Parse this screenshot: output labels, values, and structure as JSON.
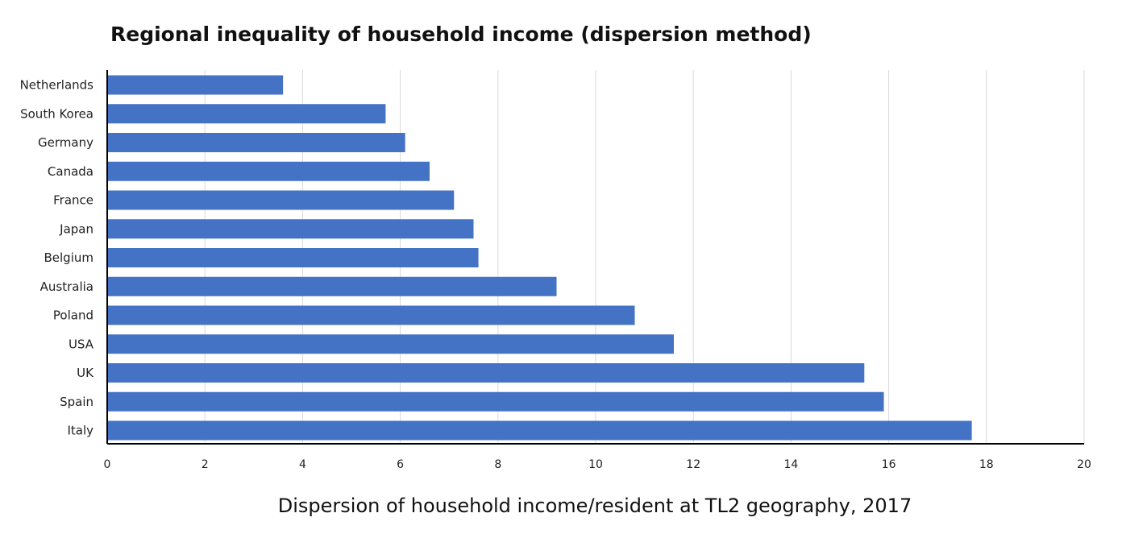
{
  "chart_data": {
    "type": "bar",
    "orientation": "horizontal",
    "title": "Regional inequality of household income (dispersion method)",
    "xlabel": "Dispersion of household income/resident at TL2 geography, 2017",
    "ylabel": "",
    "categories": [
      "Netherlands",
      "South Korea",
      "Germany",
      "Canada",
      "France",
      "Japan",
      "Belgium",
      "Australia",
      "Poland",
      "USA",
      "UK",
      "Spain",
      "Italy"
    ],
    "values": [
      3.6,
      5.7,
      6.1,
      6.6,
      7.1,
      7.5,
      7.6,
      9.2,
      10.8,
      11.6,
      15.5,
      15.9,
      17.7
    ],
    "xlim": [
      0,
      20
    ],
    "xticks": [
      "0",
      "2",
      "4",
      "6",
      "8",
      "10",
      "12",
      "14",
      "16",
      "18",
      "20"
    ],
    "grid": "vertical",
    "legend": "none",
    "colors": {
      "bar": "#4472c4",
      "grid": "#d9d9d9",
      "axis": "#000000"
    }
  }
}
